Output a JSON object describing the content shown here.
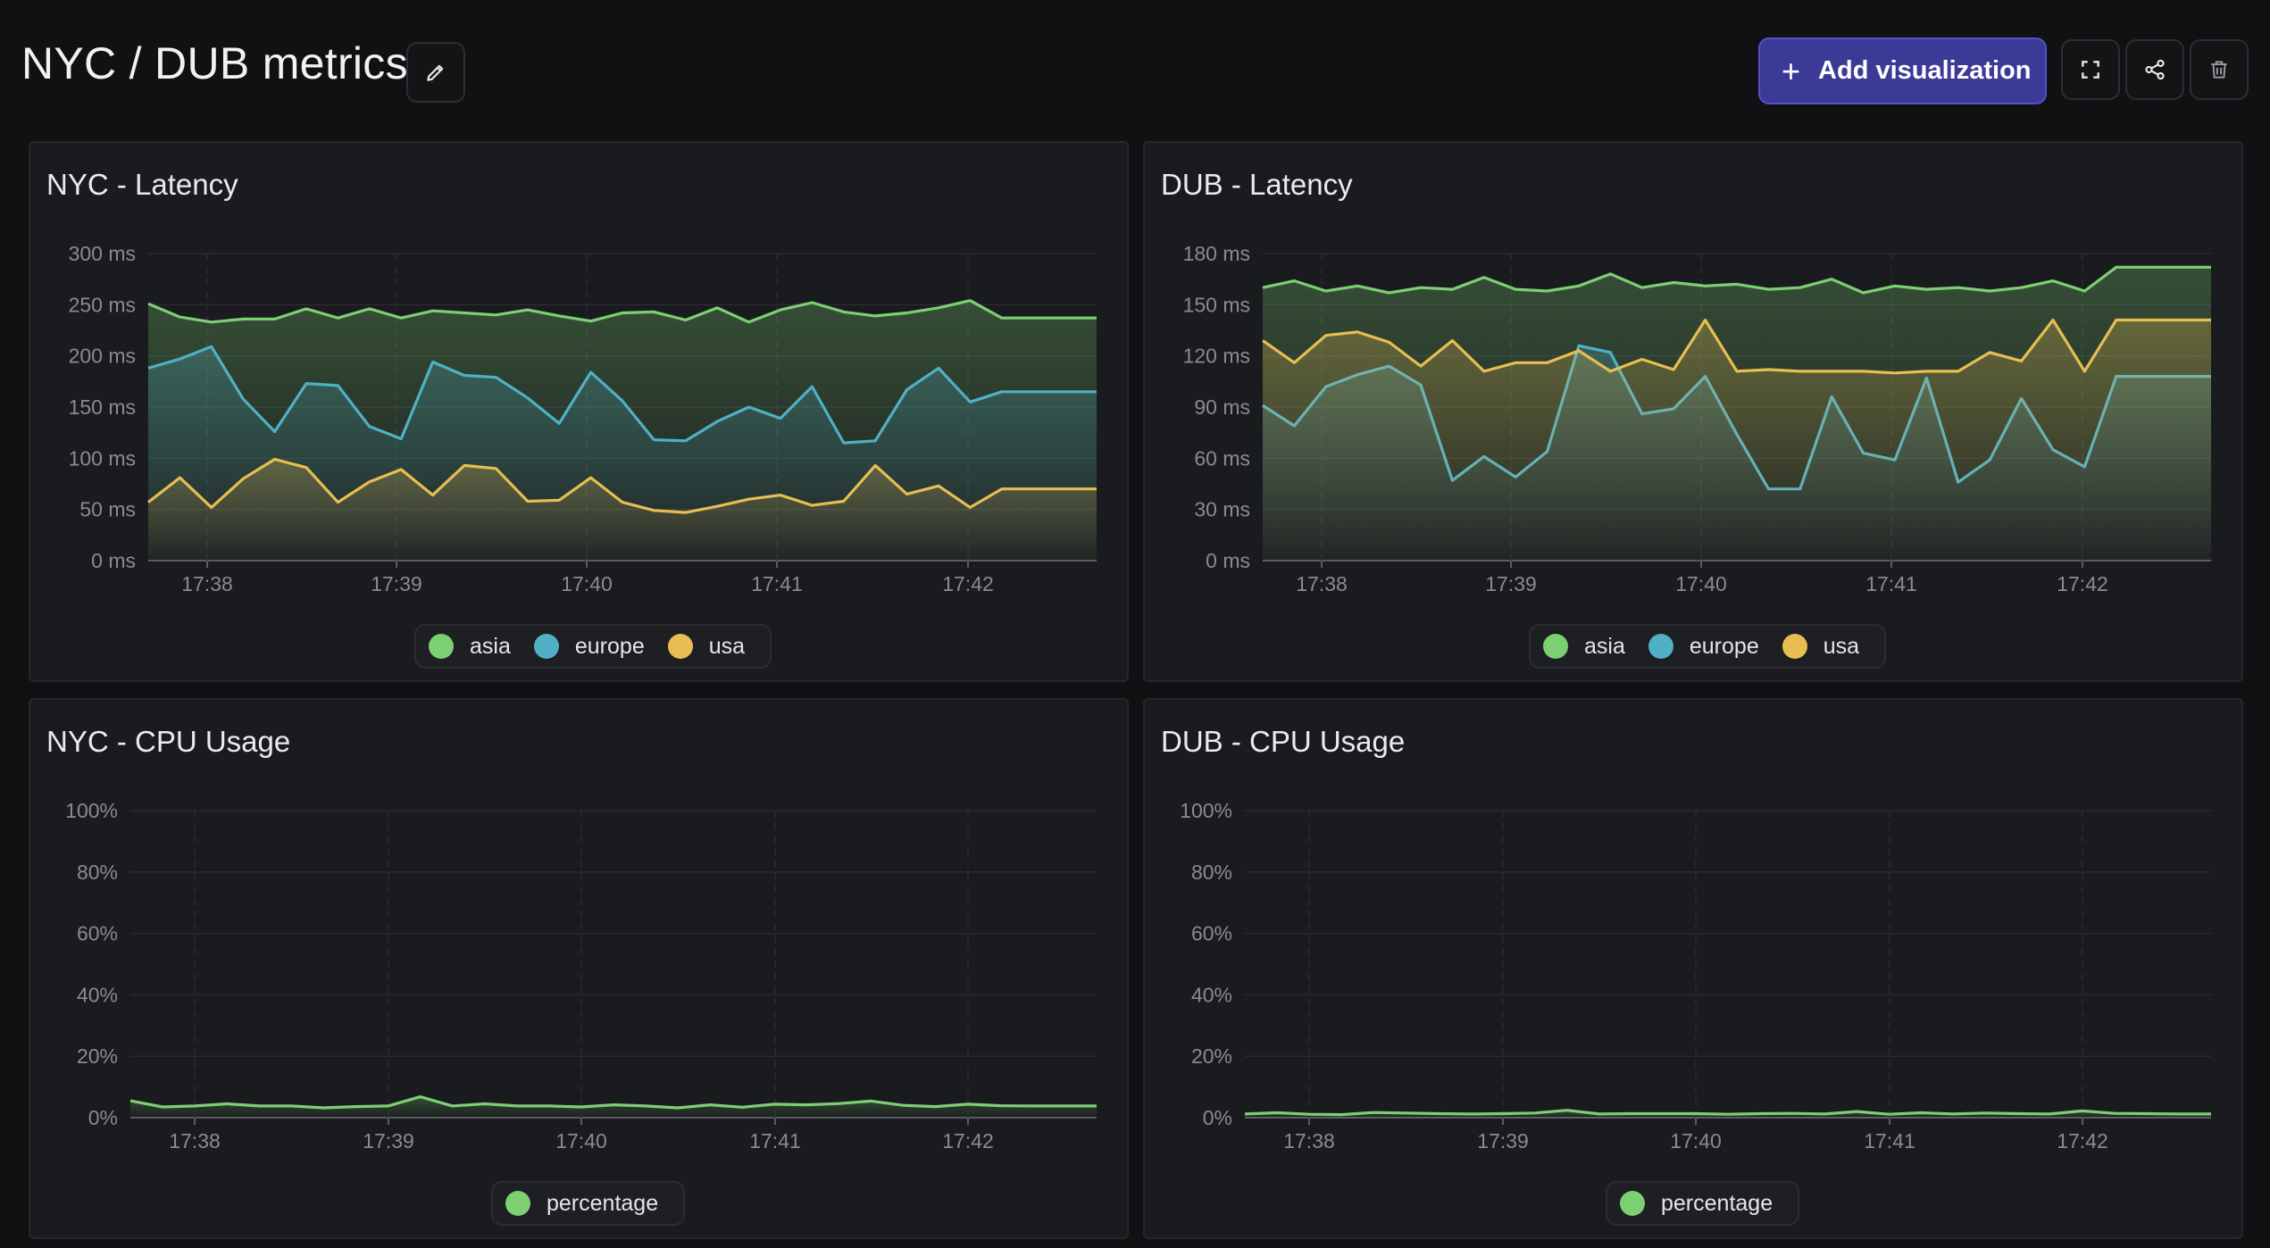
{
  "header": {
    "title": "NYC / DUB metrics",
    "add_button_label": "Add visualization",
    "edit_icon": "pencil-icon",
    "fullscreen_icon": "fullscreen-icon",
    "share_icon": "share-icon",
    "delete_icon": "trash-icon",
    "accent_color": "#3c3a97"
  },
  "panels": [
    {
      "title": "NYC - Latency"
    },
    {
      "title": "DUB - Latency"
    },
    {
      "title": "NYC - CPU Usage"
    },
    {
      "title": "DUB - CPU Usage"
    }
  ],
  "legend_colors": {
    "asia": "#7ccf73",
    "europe": "#4fb0c6",
    "usa": "#e8bd52",
    "percentage": "#7ccf73"
  },
  "chart_data": [
    {
      "type": "area",
      "title": "NYC - Latency",
      "x_ticks": [
        "17:38",
        "17:39",
        "17:40",
        "17:41",
        "17:42"
      ],
      "y_ticks": [
        "0 ms",
        "50 ms",
        "100 ms",
        "150 ms",
        "200 ms",
        "250 ms",
        "300 ms"
      ],
      "ylim": [
        0,
        300
      ],
      "grid": true,
      "legend_position": "bottom-center",
      "series": [
        {
          "name": "asia",
          "color": "#7ccf73",
          "values": [
            251,
            238,
            233,
            236,
            236,
            246,
            237,
            246,
            237,
            244,
            242,
            240,
            245,
            239,
            234,
            242,
            243,
            235,
            247,
            233,
            245,
            252,
            243,
            239,
            242,
            247,
            254,
            237,
            237,
            237,
            237
          ]
        },
        {
          "name": "europe",
          "color": "#4fb0c6",
          "values": [
            188,
            197,
            209,
            158,
            126,
            173,
            171,
            131,
            119,
            194,
            181,
            179,
            159,
            134,
            184,
            156,
            118,
            117,
            136,
            150,
            139,
            170,
            115,
            117,
            167,
            188,
            155,
            165,
            165,
            165,
            165
          ]
        },
        {
          "name": "usa",
          "color": "#e8bd52",
          "values": [
            57,
            81,
            52,
            80,
            99,
            91,
            57,
            77,
            89,
            64,
            93,
            90,
            58,
            59,
            81,
            57,
            49,
            47,
            53,
            60,
            64,
            54,
            58,
            93,
            65,
            73,
            52,
            70,
            70,
            70,
            70
          ]
        }
      ]
    },
    {
      "type": "area",
      "title": "DUB - Latency",
      "x_ticks": [
        "17:38",
        "17:39",
        "17:40",
        "17:41",
        "17:42"
      ],
      "y_ticks": [
        "0 ms",
        "30 ms",
        "60 ms",
        "90 ms",
        "120 ms",
        "150 ms",
        "180 ms"
      ],
      "ylim": [
        0,
        180
      ],
      "grid": true,
      "legend_position": "bottom-center",
      "series": [
        {
          "name": "asia",
          "color": "#7ccf73",
          "values": [
            160,
            164,
            158,
            161,
            157,
            160,
            159,
            166,
            159,
            158,
            161,
            168,
            160,
            163,
            161,
            162,
            159,
            160,
            165,
            157,
            161,
            159,
            160,
            158,
            160,
            164,
            158,
            172,
            172,
            172,
            172
          ]
        },
        {
          "name": "europe",
          "color": "#4fb0c6",
          "values": [
            91,
            79,
            102,
            109,
            114,
            103,
            47,
            61,
            49,
            64,
            126,
            122,
            86,
            89,
            108,
            74,
            42,
            42,
            96,
            63,
            59,
            107,
            46,
            59,
            95,
            65,
            55,
            108,
            108,
            108,
            108
          ]
        },
        {
          "name": "usa",
          "color": "#e8bd52",
          "values": [
            129,
            116,
            132,
            134,
            128,
            114,
            129,
            111,
            116,
            116,
            123,
            111,
            118,
            112,
            141,
            111,
            112,
            111,
            111,
            111,
            110,
            111,
            111,
            122,
            117,
            141,
            111,
            141,
            141,
            141,
            141
          ]
        }
      ]
    },
    {
      "type": "area",
      "title": "NYC - CPU Usage",
      "x_ticks": [
        "17:38",
        "17:39",
        "17:40",
        "17:41",
        "17:42"
      ],
      "y_ticks": [
        "0%",
        "20%",
        "40%",
        "60%",
        "80%",
        "100%"
      ],
      "ylim": [
        0,
        100
      ],
      "grid": true,
      "legend_position": "bottom-center",
      "series": [
        {
          "name": "percentage",
          "color": "#7ccf73",
          "values": [
            5.5,
            3.5,
            3.8,
            4.5,
            3.8,
            3.8,
            3.2,
            3.6,
            3.8,
            6.8,
            3.8,
            4.5,
            3.8,
            3.8,
            3.5,
            4.2,
            3.8,
            3.2,
            4.2,
            3.4,
            4.4,
            4.2,
            4.6,
            5.4,
            4,
            3.6,
            4.4,
            3.9,
            3.8,
            3.8,
            3.8
          ]
        }
      ]
    },
    {
      "type": "area",
      "title": "DUB - CPU Usage",
      "x_ticks": [
        "17:38",
        "17:39",
        "17:40",
        "17:41",
        "17:42"
      ],
      "y_ticks": [
        "0%",
        "20%",
        "40%",
        "60%",
        "80%",
        "100%"
      ],
      "ylim": [
        0,
        100
      ],
      "grid": true,
      "legend_position": "bottom-center",
      "series": [
        {
          "name": "percentage",
          "color": "#7ccf73",
          "values": [
            1.2,
            1.6,
            1.1,
            1.0,
            1.7,
            1.5,
            1.3,
            1.2,
            1.3,
            1.5,
            2.4,
            1.2,
            1.3,
            1.3,
            1.3,
            1.1,
            1.3,
            1.4,
            1.2,
            2.0,
            1.1,
            1.6,
            1.2,
            1.5,
            1.3,
            1.2,
            2.2,
            1.4,
            1.3,
            1.2,
            1.2
          ]
        }
      ]
    }
  ]
}
